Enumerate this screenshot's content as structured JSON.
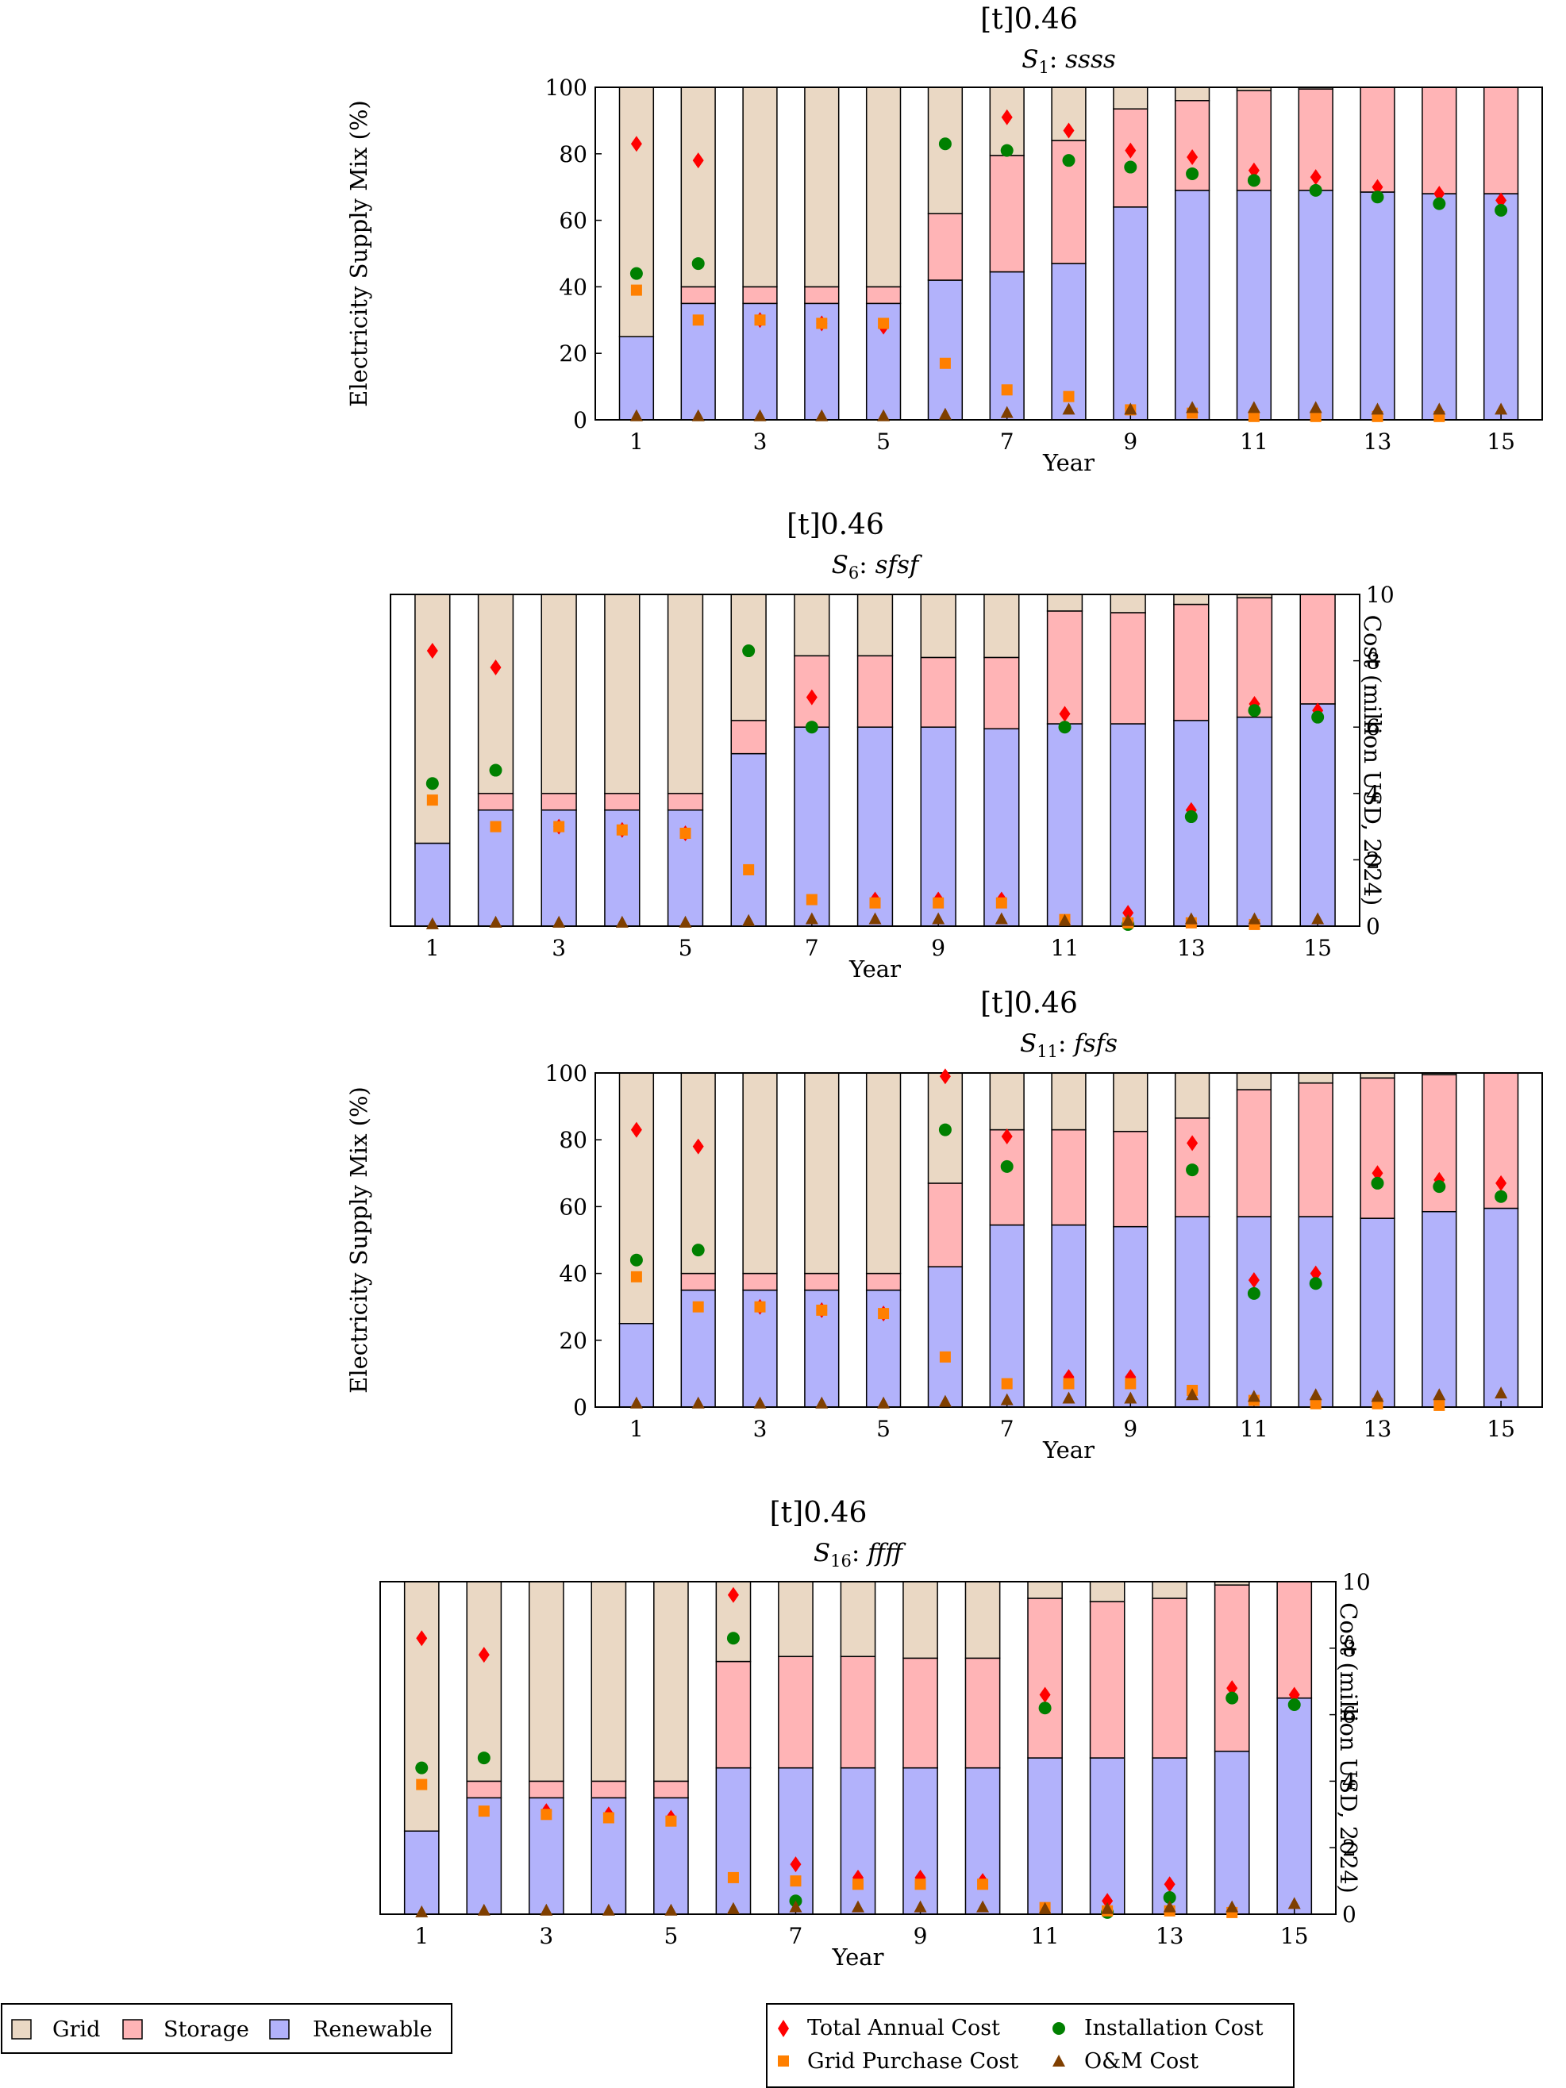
{
  "figure": {
    "captions": [
      "[t]0.46",
      "[t]0.46",
      "[t]0.46",
      "[t]0.46"
    ]
  },
  "legend_mix": {
    "items": [
      {
        "label": "Grid",
        "color": "#ead8c4"
      },
      {
        "label": "Storage",
        "color": "#ffb4b6"
      },
      {
        "label": "Renewable",
        "color": "#b2b2fb"
      }
    ]
  },
  "legend_cost": {
    "items": [
      {
        "label": "Total Annual Cost",
        "color": "#ff0000",
        "marker": "diamond"
      },
      {
        "label": "Installation Cost",
        "color": "#008000",
        "marker": "circle"
      },
      {
        "label": "Grid Purchase Cost",
        "color": "#ff7f00",
        "marker": "square"
      },
      {
        "label": "O&M Cost",
        "color": "#7f3f00",
        "marker": "triangle"
      }
    ]
  },
  "chart_data": [
    {
      "type": "bar",
      "stacked": true,
      "title": {
        "prefix": "S",
        "sub": "1",
        "code": "ssss"
      },
      "xlabel": "Year",
      "ylabel": "Electricity Supply Mix (%)",
      "y2label": "",
      "ylim": [
        0,
        100
      ],
      "y2lim": [
        0,
        10
      ],
      "x": [
        1,
        2,
        3,
        4,
        5,
        6,
        7,
        8,
        9,
        10,
        11,
        12,
        13,
        14,
        15
      ],
      "x_ticks": [
        "1",
        "3",
        "5",
        "7",
        "9",
        "11",
        "13",
        "15"
      ],
      "y_ticks": [
        "0",
        "20",
        "40",
        "60",
        "80",
        "100"
      ],
      "y2_ticks": [],
      "series": [
        {
          "name": "Renewable",
          "values": [
            25,
            35,
            35,
            35,
            35,
            42,
            44.5,
            47,
            64,
            69,
            69,
            69,
            68.5,
            68,
            68
          ]
        },
        {
          "name": "Storage",
          "values": [
            0,
            5,
            5,
            5,
            5,
            20,
            35,
            37,
            29.5,
            27,
            30,
            30.5,
            31.5,
            32,
            32
          ]
        },
        {
          "name": "Grid",
          "values": [
            75,
            60,
            60,
            60,
            60,
            38,
            20.5,
            16,
            6.5,
            4,
            1,
            0.5,
            0,
            0,
            0
          ]
        }
      ],
      "costs": [
        {
          "name": "Total Annual Cost",
          "values": [
            8.3,
            7.8,
            3.0,
            2.9,
            2.8,
            null,
            9.1,
            8.7,
            8.1,
            7.9,
            7.5,
            7.3,
            7.0,
            6.8,
            6.6
          ]
        },
        {
          "name": "Installation Cost",
          "values": [
            4.4,
            4.7,
            null,
            null,
            null,
            8.3,
            8.1,
            7.8,
            7.6,
            7.4,
            7.2,
            6.9,
            6.7,
            6.5,
            6.3
          ]
        },
        {
          "name": "Grid Purchase Cost",
          "values": [
            3.9,
            3.0,
            3.0,
            2.9,
            2.9,
            1.7,
            0.9,
            0.7,
            0.3,
            0.2,
            0.1,
            0.1,
            0.1,
            0.1,
            null
          ]
        },
        {
          "name": "O&M Cost",
          "values": [
            0.1,
            0.1,
            0.1,
            0.1,
            0.1,
            0.15,
            0.2,
            0.3,
            0.3,
            0.35,
            0.35,
            0.35,
            0.3,
            0.3,
            0.3
          ]
        }
      ]
    },
    {
      "type": "bar",
      "stacked": true,
      "title": {
        "prefix": "S",
        "sub": "6",
        "code": "sfsf"
      },
      "xlabel": "Year",
      "ylabel": "",
      "y2label": "Cost (million USD, 2024)",
      "ylim": [
        0,
        100
      ],
      "y2lim": [
        0,
        10
      ],
      "x": [
        1,
        2,
        3,
        4,
        5,
        6,
        7,
        8,
        9,
        10,
        11,
        12,
        13,
        14,
        15
      ],
      "x_ticks": [
        "1",
        "3",
        "5",
        "7",
        "9",
        "11",
        "13",
        "15"
      ],
      "y_ticks": [],
      "y2_ticks": [
        "0",
        "2",
        "4",
        "6",
        "8",
        "10"
      ],
      "series": [
        {
          "name": "Renewable",
          "values": [
            25,
            35,
            35,
            35,
            35,
            52,
            60,
            60,
            60,
            59.5,
            61,
            61,
            62,
            63,
            67
          ]
        },
        {
          "name": "Storage",
          "values": [
            0,
            5,
            5,
            5,
            5,
            10,
            21.5,
            21.5,
            21,
            21.5,
            34,
            33.5,
            35,
            36,
            33
          ]
        },
        {
          "name": "Grid",
          "values": [
            75,
            60,
            60,
            60,
            60,
            38,
            18.5,
            18.5,
            19,
            19,
            5,
            5.5,
            3,
            1,
            0
          ]
        }
      ],
      "costs": [
        {
          "name": "Total Annual Cost",
          "values": [
            8.3,
            7.8,
            3.0,
            2.9,
            2.8,
            null,
            6.9,
            0.8,
            0.8,
            0.8,
            6.4,
            0.4,
            3.5,
            6.7,
            6.5
          ]
        },
        {
          "name": "Installation Cost",
          "values": [
            4.3,
            4.7,
            null,
            null,
            null,
            8.3,
            6.0,
            null,
            null,
            null,
            6.0,
            0.05,
            3.3,
            6.5,
            6.3
          ]
        },
        {
          "name": "Grid Purchase Cost",
          "values": [
            3.8,
            3.0,
            3.0,
            2.9,
            2.8,
            1.7,
            0.8,
            0.7,
            0.7,
            0.7,
            0.2,
            0.1,
            0.1,
            0.05,
            null
          ]
        },
        {
          "name": "O&M Cost",
          "values": [
            0.05,
            0.1,
            0.1,
            0.1,
            0.1,
            0.15,
            0.2,
            0.2,
            0.2,
            0.2,
            0.15,
            0.15,
            0.2,
            0.2,
            0.2
          ]
        }
      ]
    },
    {
      "type": "bar",
      "stacked": true,
      "title": {
        "prefix": "S",
        "sub": "11",
        "code": "fsfs"
      },
      "xlabel": "Year",
      "ylabel": "Electricity Supply Mix (%)",
      "y2label": "",
      "ylim": [
        0,
        100
      ],
      "y2lim": [
        0,
        10
      ],
      "x": [
        1,
        2,
        3,
        4,
        5,
        6,
        7,
        8,
        9,
        10,
        11,
        12,
        13,
        14,
        15
      ],
      "x_ticks": [
        "1",
        "3",
        "5",
        "7",
        "9",
        "11",
        "13",
        "15"
      ],
      "y_ticks": [
        "0",
        "20",
        "40",
        "60",
        "80",
        "100"
      ],
      "y2_ticks": [],
      "series": [
        {
          "name": "Renewable",
          "values": [
            25,
            35,
            35,
            35,
            35,
            42,
            54.5,
            54.5,
            54,
            57,
            57,
            57,
            56.5,
            58.5,
            59.5
          ]
        },
        {
          "name": "Storage",
          "values": [
            0,
            5,
            5,
            5,
            5,
            25,
            28.5,
            28.5,
            28.5,
            29.5,
            38,
            40,
            42,
            41,
            40.5
          ]
        },
        {
          "name": "Grid",
          "values": [
            75,
            60,
            60,
            60,
            60,
            33,
            17,
            17,
            17.5,
            13.5,
            5,
            3,
            1.5,
            0.5,
            0
          ]
        }
      ],
      "costs": [
        {
          "name": "Total Annual Cost",
          "values": [
            8.3,
            7.8,
            3.0,
            2.9,
            2.8,
            9.9,
            8.1,
            0.9,
            0.9,
            7.9,
            3.8,
            4.0,
            7.0,
            6.8,
            6.7
          ]
        },
        {
          "name": "Installation Cost",
          "values": [
            4.4,
            4.7,
            null,
            null,
            null,
            8.3,
            7.2,
            null,
            null,
            7.1,
            3.4,
            3.7,
            6.7,
            6.6,
            6.3
          ]
        },
        {
          "name": "Grid Purchase Cost",
          "values": [
            3.9,
            3.0,
            3.0,
            2.9,
            2.8,
            1.5,
            0.7,
            0.7,
            0.7,
            0.5,
            0.2,
            0.1,
            0.1,
            0.05,
            null
          ]
        },
        {
          "name": "O&M Cost",
          "values": [
            0.1,
            0.1,
            0.1,
            0.1,
            0.1,
            0.15,
            0.2,
            0.25,
            0.25,
            0.35,
            0.3,
            0.35,
            0.3,
            0.35,
            0.4
          ]
        }
      ]
    },
    {
      "type": "bar",
      "stacked": true,
      "title": {
        "prefix": "S",
        "sub": "16",
        "code": "ffff"
      },
      "xlabel": "Year",
      "ylabel": "",
      "y2label": "Cost (million USD, 2024)",
      "ylim": [
        0,
        100
      ],
      "y2lim": [
        0,
        10
      ],
      "x": [
        1,
        2,
        3,
        4,
        5,
        6,
        7,
        8,
        9,
        10,
        11,
        12,
        13,
        14,
        15
      ],
      "x_ticks": [
        "1",
        "3",
        "5",
        "7",
        "9",
        "11",
        "13",
        "15"
      ],
      "y_ticks": [],
      "y2_ticks": [
        "0",
        "2",
        "4",
        "6",
        "8",
        "10"
      ],
      "series": [
        {
          "name": "Renewable",
          "values": [
            25,
            35,
            35,
            35,
            35,
            44,
            44,
            44,
            44,
            44,
            47,
            47,
            47,
            49,
            65
          ]
        },
        {
          "name": "Storage",
          "values": [
            0,
            5,
            5,
            5,
            5,
            32,
            33.5,
            33.5,
            33,
            33,
            48,
            47,
            48,
            50,
            35
          ]
        },
        {
          "name": "Grid",
          "values": [
            75,
            60,
            60,
            60,
            60,
            24,
            22.5,
            22.5,
            23,
            23,
            5,
            6,
            5,
            1,
            0
          ]
        }
      ],
      "costs": [
        {
          "name": "Total Annual Cost",
          "values": [
            8.3,
            7.8,
            3.1,
            3.0,
            2.9,
            9.6,
            1.5,
            1.1,
            1.1,
            1.0,
            6.6,
            0.4,
            0.9,
            6.8,
            6.6
          ]
        },
        {
          "name": "Installation Cost",
          "values": [
            4.4,
            4.7,
            null,
            null,
            null,
            8.3,
            0.4,
            null,
            null,
            null,
            6.2,
            0.05,
            0.5,
            6.5,
            6.3
          ]
        },
        {
          "name": "Grid Purchase Cost",
          "values": [
            3.9,
            3.1,
            3.0,
            2.9,
            2.8,
            1.1,
            1.0,
            0.9,
            0.9,
            0.9,
            0.2,
            0.1,
            0.1,
            0.05,
            null
          ]
        },
        {
          "name": "O&M Cost",
          "values": [
            0.05,
            0.1,
            0.1,
            0.1,
            0.1,
            0.15,
            0.2,
            0.2,
            0.2,
            0.2,
            0.15,
            0.15,
            0.2,
            0.2,
            0.3
          ]
        }
      ]
    }
  ]
}
